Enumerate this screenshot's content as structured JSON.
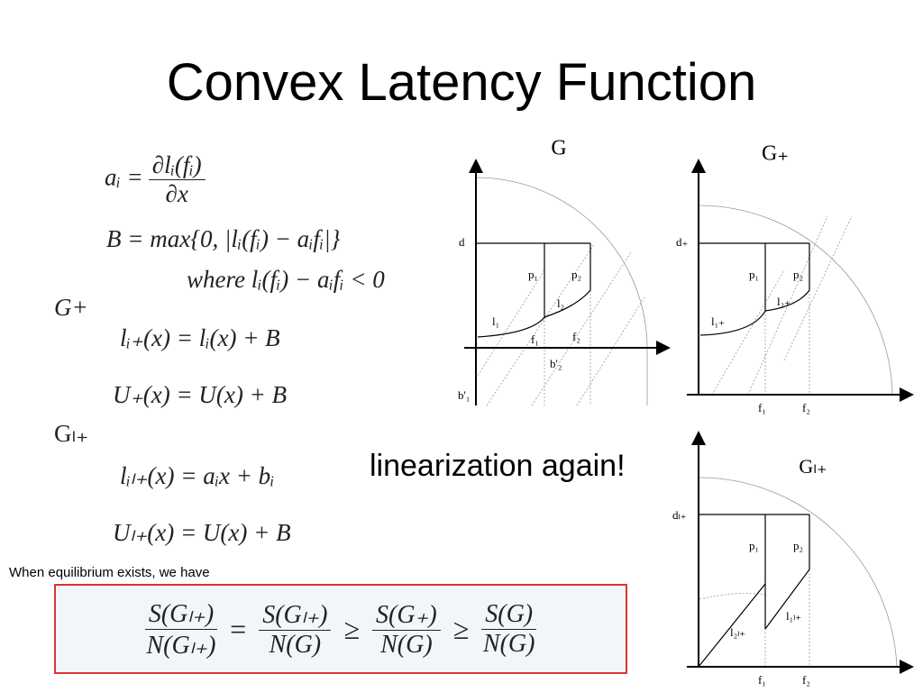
{
  "title": "Convex Latency Function",
  "formulas": {
    "a_i": {
      "lhs": "aᵢ =",
      "num": "∂lᵢ(fᵢ)",
      "den": "∂x"
    },
    "lines": [
      "B = max{0, |lᵢ(fᵢ) − aᵢfᵢ|}",
      "where lᵢ(fᵢ) − aᵢfᵢ < 0",
      "G+",
      "lᵢ₊(x) = lᵢ(x) + B",
      "U₊(x) = U(x) + B",
      "Gₗ₊",
      "lᵢₗ₊(x) = aᵢx + bᵢ",
      "Uₗ₊(x) = U(x) + B"
    ]
  },
  "caption": "linearization again!",
  "note": "When equilibrium exists, we have",
  "inequality": {
    "terms": [
      {
        "num": "S(Gₗ₊)",
        "den": "N(Gₗ₊)"
      },
      "=",
      {
        "num": "S(Gₗ₊)",
        "den": "N(G)"
      },
      "≥",
      {
        "num": "S(G₊)",
        "den": "N(G)"
      },
      "≥",
      {
        "num": "S(G)",
        "den": "N(G)"
      }
    ]
  },
  "diagrams": [
    {
      "title": "G",
      "labels": [
        "d",
        "p₁",
        "p₂",
        "l₁",
        "l₂",
        "f₁",
        "f₂",
        "b'₂",
        "b'₁"
      ]
    },
    {
      "title": "G₊",
      "labels": [
        "d₊",
        "p₁",
        "p₂",
        "l₁₊",
        "l₂₊",
        "f₁",
        "f₂"
      ]
    },
    {
      "title": "Gₗ₊",
      "labels": [
        "dₗ₊",
        "p₁",
        "p₂",
        "l₁ₗ₊",
        "l₂ₗ₊",
        "f₁",
        "f₂"
      ]
    }
  ]
}
